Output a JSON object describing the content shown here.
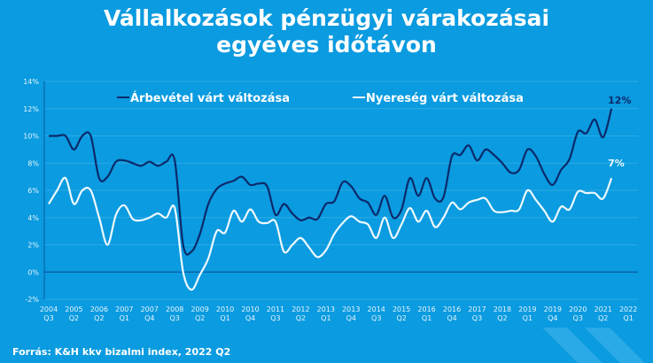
{
  "chart_data": {
    "type": "line",
    "title_line1": "Vállalkozások pénzügyi várakozásai",
    "title_line2": "egyéves időtávon",
    "ylim": [
      -2,
      14
    ],
    "yticks": [
      "-2%",
      "0%",
      "2%",
      "4%",
      "6%",
      "8%",
      "10%",
      "12%",
      "14%"
    ],
    "ytick_values": [
      -2,
      0,
      2,
      4,
      6,
      8,
      10,
      12,
      14
    ],
    "xtick_labels": [
      [
        "2004",
        "Q3"
      ],
      [
        "2005",
        "Q2"
      ],
      [
        "2006",
        "Q2"
      ],
      [
        "2007",
        "Q1"
      ],
      [
        "2007",
        "Q4"
      ],
      [
        "2008",
        "Q3"
      ],
      [
        "2009",
        "Q2"
      ],
      [
        "2010",
        "Q1"
      ],
      [
        "2010",
        "Q4"
      ],
      [
        "2011",
        "Q3"
      ],
      [
        "2012",
        "Q2"
      ],
      [
        "2013",
        "Q1"
      ],
      [
        "2013",
        "Q4"
      ],
      [
        "2014",
        "Q3"
      ],
      [
        "2015",
        "Q2"
      ],
      [
        "2016",
        "Q1"
      ],
      [
        "2016",
        "Q4"
      ],
      [
        "2017",
        "Q3"
      ],
      [
        "2018",
        "Q2"
      ],
      [
        "2019",
        "Q1"
      ],
      [
        "2019",
        "Q4"
      ],
      [
        "2020",
        "Q3"
      ],
      [
        "2021",
        "Q2"
      ],
      [
        "2022",
        "Q1"
      ]
    ],
    "grid": true,
    "legend_placement": "top",
    "series": [
      {
        "name": "Árbevétel várt változása",
        "color": "#0b2a6b",
        "end_label": "12%",
        "values": [
          10.0,
          10.0,
          10.0,
          9.0,
          10.0,
          10.0,
          6.9,
          7.0,
          8.1,
          8.2,
          8.0,
          7.8,
          8.1,
          7.8,
          8.1,
          8.2,
          2.0,
          1.5,
          2.8,
          5.0,
          6.1,
          6.5,
          6.7,
          7.0,
          6.4,
          6.5,
          6.3,
          4.2,
          5.0,
          4.3,
          3.8,
          4.0,
          3.9,
          5.0,
          5.2,
          6.6,
          6.3,
          5.4,
          5.1,
          4.2,
          5.6,
          4.0,
          4.6,
          6.9,
          5.6,
          6.9,
          5.4,
          5.5,
          8.5,
          8.6,
          9.3,
          8.2,
          9.0,
          8.6,
          8.0,
          7.3,
          7.5,
          9.0,
          8.5,
          7.2,
          6.4,
          7.5,
          8.3,
          10.3,
          10.2,
          11.2,
          9.9,
          12.0
        ]
      },
      {
        "name": "Nyereség várt változása",
        "color": "#eef8ff",
        "end_label": "7%",
        "values": [
          5.0,
          6.0,
          6.9,
          5.0,
          6.0,
          6.0,
          4.0,
          2.0,
          4.2,
          4.9,
          3.9,
          3.8,
          4.0,
          4.3,
          4.0,
          4.7,
          0.0,
          -1.3,
          -0.2,
          1.0,
          3.0,
          2.9,
          4.5,
          3.7,
          4.6,
          3.7,
          3.6,
          3.7,
          1.5,
          2.0,
          2.5,
          1.8,
          1.1,
          1.6,
          2.8,
          3.6,
          4.1,
          3.7,
          3.5,
          2.5,
          4.0,
          2.5,
          3.5,
          4.7,
          3.7,
          4.5,
          3.3,
          4.0,
          5.1,
          4.6,
          5.1,
          5.3,
          5.4,
          4.5,
          4.4,
          4.5,
          4.6,
          6.0,
          5.3,
          4.5,
          3.7,
          4.8,
          4.6,
          5.9,
          5.8,
          5.8,
          5.4,
          6.9
        ]
      }
    ],
    "source": "Forrás: K&H kkv bizalmi index, 2022 Q2"
  }
}
